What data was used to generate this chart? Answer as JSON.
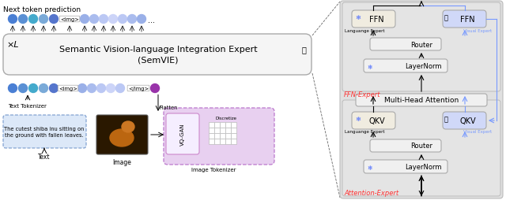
{
  "title": "Next token prediction",
  "semvie_line1": "Semantic Vision-language Integration Expert",
  "semvie_line2": "(SemVIE)",
  "xl_label": "×L",
  "img_tag": "<img>",
  "end_img_tag": "</img>",
  "text_tokenizer_label": "Text Tokenizer",
  "image_tokenizer_label": "Image Tokenizer",
  "text_label": "Text",
  "image_label": "Image",
  "flatten_label": "Flatten",
  "discretize_label": "Discretize",
  "vqgan_label": "VQ-GAN",
  "text_content": "The cutest shiba inu sitting on\nthe ground with fallen leaves.",
  "ffn_expert_label": "FFN-Expert",
  "attention_expert_label": "Attention-Expert",
  "ffn_label": "FFN",
  "qkv_label": "QKV",
  "router_label": "Router",
  "layernorm_label": "LayerNorm",
  "mha_label": "Multi-Head Attention",
  "language_expert_label": "Languange Expert",
  "visual_expert_label": "Visual Expert",
  "dots": "...",
  "semvie_box_fc": "#f5f5f5",
  "semvie_box_ec": "#aaaaaa",
  "text_box_fc": "#dce8f8",
  "text_box_ec": "#7799cc",
  "image_tok_fc": "#e8d0f0",
  "image_tok_ec": "#bb77cc",
  "ffn_lang_fc": "#f0ece0",
  "ffn_vis_fc": "#d0d8f8",
  "qkv_lang_fc": "#f0ece0",
  "qkv_vis_fc": "#d0d8f8",
  "router_fc": "#f0f0f0",
  "layernorm_fc": "#f0f0f0",
  "mha_fc": "#f0f0f0",
  "right_bg_fc": "#e0e0e0",
  "expert_label_color": "#ff3333",
  "visual_expert_color": "#7799ff",
  "box_ec": "#aaaaaa",
  "snow_color": "#4466ff",
  "token_blue1": "#4a7fd4",
  "token_blue2": "#5a90d4",
  "token_cyan": "#44aacc",
  "token_blue3": "#7aaad8",
  "token_blue4": "#5575cc",
  "token_light1": "#9ab0e8",
  "token_light2": "#aabcee",
  "token_light3": "#bbc8f4",
  "token_light4": "#ccd4f8",
  "token_light5": "#dde0fa",
  "token_purple": "#9933aa"
}
